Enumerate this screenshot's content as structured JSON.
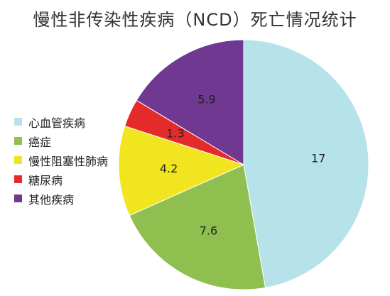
{
  "chart_data": {
    "type": "pie",
    "title": "慢性非传染性疾病（NCD）死亡情况统计",
    "start_angle_deg": 0,
    "direction": "clockwise",
    "legend_position": "left",
    "slices": [
      {
        "label": "心血管疾病",
        "value": 17,
        "value_label": "17",
        "color": "#b6e2ea"
      },
      {
        "label": "癌症",
        "value": 7.6,
        "value_label": "7.6",
        "color": "#8fbf4f"
      },
      {
        "label": "慢性阻塞性肺病",
        "value": 4.2,
        "value_label": "4.2",
        "color": "#f0e51e"
      },
      {
        "label": "糖尿病",
        "value": 1.3,
        "value_label": "1.3",
        "color": "#e42b29"
      },
      {
        "label": "其他疾病",
        "value": 5.9,
        "value_label": "5.9",
        "color": "#6f3891"
      }
    ]
  }
}
